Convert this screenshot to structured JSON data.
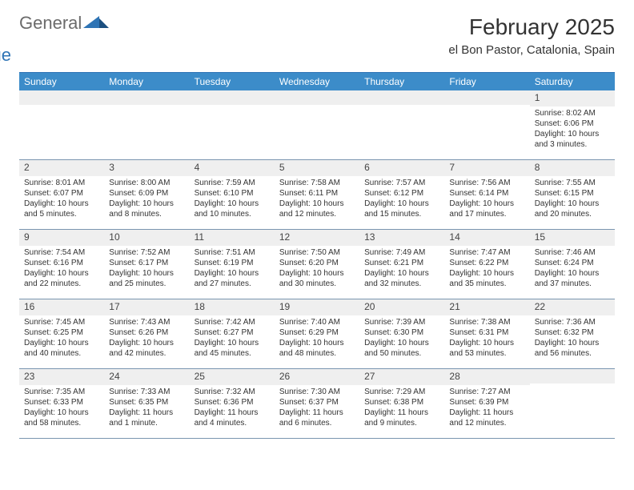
{
  "brand": {
    "part1": "General",
    "part2": "Blue"
  },
  "title": "February 2025",
  "subtitle": "el Bon Pastor, Catalonia, Spain",
  "colors": {
    "header_bar": "#3c8cc9",
    "accent_line": "#2e74b5",
    "day_bar_bg": "#efefef",
    "week_border": "#7a95b0",
    "text": "#333333",
    "logo_gray": "#6b6b6b",
    "logo_blue": "#2e74b5"
  },
  "dow": [
    "Sunday",
    "Monday",
    "Tuesday",
    "Wednesday",
    "Thursday",
    "Friday",
    "Saturday"
  ],
  "weeks": [
    [
      {
        "n": "",
        "sr": "",
        "ss": "",
        "dl": ""
      },
      {
        "n": "",
        "sr": "",
        "ss": "",
        "dl": ""
      },
      {
        "n": "",
        "sr": "",
        "ss": "",
        "dl": ""
      },
      {
        "n": "",
        "sr": "",
        "ss": "",
        "dl": ""
      },
      {
        "n": "",
        "sr": "",
        "ss": "",
        "dl": ""
      },
      {
        "n": "",
        "sr": "",
        "ss": "",
        "dl": ""
      },
      {
        "n": "1",
        "sr": "Sunrise: 8:02 AM",
        "ss": "Sunset: 6:06 PM",
        "dl": "Daylight: 10 hours and 3 minutes."
      }
    ],
    [
      {
        "n": "2",
        "sr": "Sunrise: 8:01 AM",
        "ss": "Sunset: 6:07 PM",
        "dl": "Daylight: 10 hours and 5 minutes."
      },
      {
        "n": "3",
        "sr": "Sunrise: 8:00 AM",
        "ss": "Sunset: 6:09 PM",
        "dl": "Daylight: 10 hours and 8 minutes."
      },
      {
        "n": "4",
        "sr": "Sunrise: 7:59 AM",
        "ss": "Sunset: 6:10 PM",
        "dl": "Daylight: 10 hours and 10 minutes."
      },
      {
        "n": "5",
        "sr": "Sunrise: 7:58 AM",
        "ss": "Sunset: 6:11 PM",
        "dl": "Daylight: 10 hours and 12 minutes."
      },
      {
        "n": "6",
        "sr": "Sunrise: 7:57 AM",
        "ss": "Sunset: 6:12 PM",
        "dl": "Daylight: 10 hours and 15 minutes."
      },
      {
        "n": "7",
        "sr": "Sunrise: 7:56 AM",
        "ss": "Sunset: 6:14 PM",
        "dl": "Daylight: 10 hours and 17 minutes."
      },
      {
        "n": "8",
        "sr": "Sunrise: 7:55 AM",
        "ss": "Sunset: 6:15 PM",
        "dl": "Daylight: 10 hours and 20 minutes."
      }
    ],
    [
      {
        "n": "9",
        "sr": "Sunrise: 7:54 AM",
        "ss": "Sunset: 6:16 PM",
        "dl": "Daylight: 10 hours and 22 minutes."
      },
      {
        "n": "10",
        "sr": "Sunrise: 7:52 AM",
        "ss": "Sunset: 6:17 PM",
        "dl": "Daylight: 10 hours and 25 minutes."
      },
      {
        "n": "11",
        "sr": "Sunrise: 7:51 AM",
        "ss": "Sunset: 6:19 PM",
        "dl": "Daylight: 10 hours and 27 minutes."
      },
      {
        "n": "12",
        "sr": "Sunrise: 7:50 AM",
        "ss": "Sunset: 6:20 PM",
        "dl": "Daylight: 10 hours and 30 minutes."
      },
      {
        "n": "13",
        "sr": "Sunrise: 7:49 AM",
        "ss": "Sunset: 6:21 PM",
        "dl": "Daylight: 10 hours and 32 minutes."
      },
      {
        "n": "14",
        "sr": "Sunrise: 7:47 AM",
        "ss": "Sunset: 6:22 PM",
        "dl": "Daylight: 10 hours and 35 minutes."
      },
      {
        "n": "15",
        "sr": "Sunrise: 7:46 AM",
        "ss": "Sunset: 6:24 PM",
        "dl": "Daylight: 10 hours and 37 minutes."
      }
    ],
    [
      {
        "n": "16",
        "sr": "Sunrise: 7:45 AM",
        "ss": "Sunset: 6:25 PM",
        "dl": "Daylight: 10 hours and 40 minutes."
      },
      {
        "n": "17",
        "sr": "Sunrise: 7:43 AM",
        "ss": "Sunset: 6:26 PM",
        "dl": "Daylight: 10 hours and 42 minutes."
      },
      {
        "n": "18",
        "sr": "Sunrise: 7:42 AM",
        "ss": "Sunset: 6:27 PM",
        "dl": "Daylight: 10 hours and 45 minutes."
      },
      {
        "n": "19",
        "sr": "Sunrise: 7:40 AM",
        "ss": "Sunset: 6:29 PM",
        "dl": "Daylight: 10 hours and 48 minutes."
      },
      {
        "n": "20",
        "sr": "Sunrise: 7:39 AM",
        "ss": "Sunset: 6:30 PM",
        "dl": "Daylight: 10 hours and 50 minutes."
      },
      {
        "n": "21",
        "sr": "Sunrise: 7:38 AM",
        "ss": "Sunset: 6:31 PM",
        "dl": "Daylight: 10 hours and 53 minutes."
      },
      {
        "n": "22",
        "sr": "Sunrise: 7:36 AM",
        "ss": "Sunset: 6:32 PM",
        "dl": "Daylight: 10 hours and 56 minutes."
      }
    ],
    [
      {
        "n": "23",
        "sr": "Sunrise: 7:35 AM",
        "ss": "Sunset: 6:33 PM",
        "dl": "Daylight: 10 hours and 58 minutes."
      },
      {
        "n": "24",
        "sr": "Sunrise: 7:33 AM",
        "ss": "Sunset: 6:35 PM",
        "dl": "Daylight: 11 hours and 1 minute."
      },
      {
        "n": "25",
        "sr": "Sunrise: 7:32 AM",
        "ss": "Sunset: 6:36 PM",
        "dl": "Daylight: 11 hours and 4 minutes."
      },
      {
        "n": "26",
        "sr": "Sunrise: 7:30 AM",
        "ss": "Sunset: 6:37 PM",
        "dl": "Daylight: 11 hours and 6 minutes."
      },
      {
        "n": "27",
        "sr": "Sunrise: 7:29 AM",
        "ss": "Sunset: 6:38 PM",
        "dl": "Daylight: 11 hours and 9 minutes."
      },
      {
        "n": "28",
        "sr": "Sunrise: 7:27 AM",
        "ss": "Sunset: 6:39 PM",
        "dl": "Daylight: 11 hours and 12 minutes."
      },
      {
        "n": "",
        "sr": "",
        "ss": "",
        "dl": ""
      }
    ]
  ]
}
